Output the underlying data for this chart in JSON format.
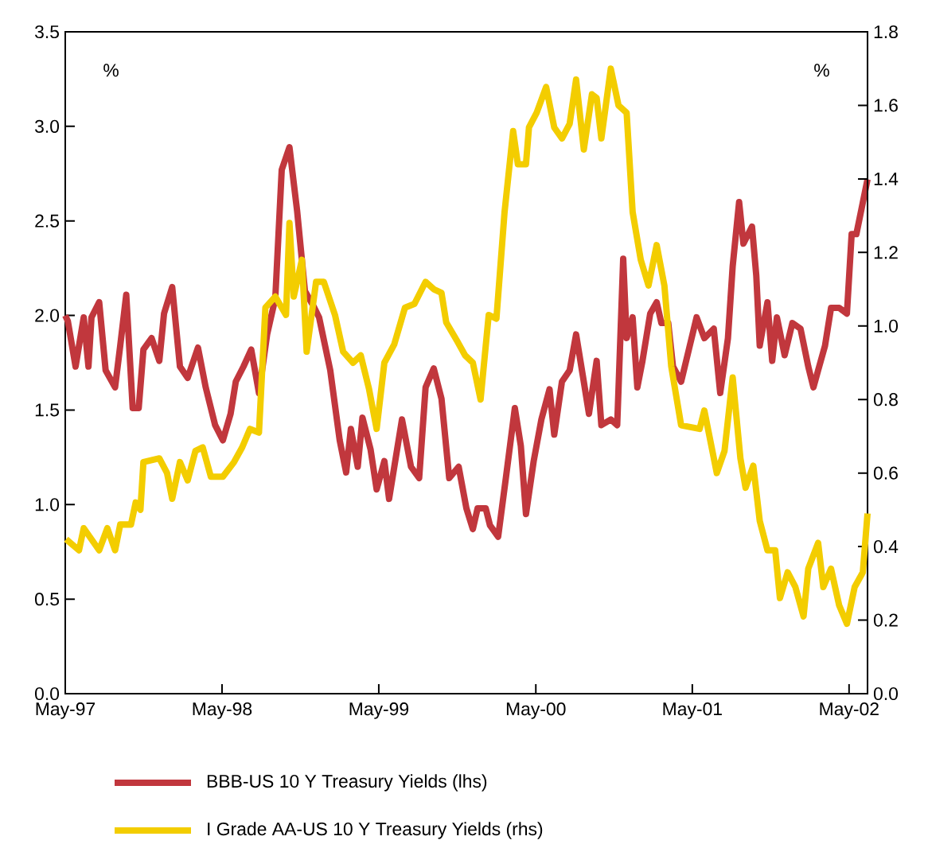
{
  "chart_data": {
    "type": "line",
    "xlim": [
      "1997-05-01",
      "2002-06-13"
    ],
    "xticks": [
      {
        "value": "1997-05",
        "label": "May-97"
      },
      {
        "value": "1998-05",
        "label": "May-98"
      },
      {
        "value": "1999-05",
        "label": "May-99"
      },
      {
        "value": "2000-05",
        "label": "May-00"
      },
      {
        "value": "2001-05",
        "label": "May-01"
      },
      {
        "value": "2002-05",
        "label": "May-02"
      }
    ],
    "ylim": [
      0,
      3.5
    ],
    "yticks": [
      {
        "value": 0,
        "label": "0.0"
      },
      {
        "value": 0.5,
        "label": "0.5"
      },
      {
        "value": 1,
        "label": "1.0"
      },
      {
        "value": 1.5,
        "label": "1.5"
      },
      {
        "value": 2,
        "label": "2.0"
      },
      {
        "value": 2.5,
        "label": "2.5"
      },
      {
        "value": 3,
        "label": "3.0"
      },
      {
        "value": 3.5,
        "label": "3.5"
      }
    ],
    "y2lim": [
      0,
      1.8
    ],
    "y2ticks": [
      {
        "value": 0,
        "label": "0.0"
      },
      {
        "value": 0.2,
        "label": "0.2"
      },
      {
        "value": 0.4,
        "label": "0.4"
      },
      {
        "value": 0.6,
        "label": "0.6"
      },
      {
        "value": 0.8,
        "label": "0.8"
      },
      {
        "value": 1,
        "label": "1.0"
      },
      {
        "value": 1.2,
        "label": "1.2"
      },
      {
        "value": 1.4,
        "label": "1.4"
      },
      {
        "value": 1.6,
        "label": "1.6"
      },
      {
        "value": 1.8,
        "label": "1.8"
      }
    ],
    "ylabel": "%",
    "y2label": "%",
    "legend": "bottom",
    "grid": false,
    "marker": "none",
    "line_style": "solid",
    "series": [
      {
        "name": "BBB-US 10 Y Treasury Yields (lhs)",
        "color": "#c1373d",
        "x": [
          "1997-05-01",
          "1997-05-07",
          "1997-05-25",
          "1997-06-13",
          "1997-06-24",
          "1997-07-01",
          "1997-07-19",
          "1997-08-03",
          "1997-08-25",
          "1997-09-06",
          "1997-09-20",
          "1997-10-05",
          "1997-10-19",
          "1997-10-30",
          "1997-11-18",
          "1997-12-06",
          "1997-12-17",
          "1998-01-05",
          "1998-01-23",
          "1998-02-10",
          "1998-03-06",
          "1998-03-24",
          "1998-04-15",
          "1998-05-03",
          "1998-05-21",
          "1998-06-02",
          "1998-06-20",
          "1998-07-08",
          "1998-07-26",
          "1998-08-14",
          "1998-09-02",
          "1998-09-17",
          "1998-10-05",
          "1998-10-23",
          "1998-11-10",
          "1998-12-02",
          "1998-12-13",
          "1999-01-08",
          "1999-01-30",
          "1999-02-14",
          "1999-02-25",
          "1999-03-13",
          "1999-03-24",
          "1999-04-12",
          "1999-04-26",
          "1999-05-14",
          "1999-05-25",
          "1999-06-24",
          "1999-07-15",
          "1999-08-03",
          "1999-08-18",
          "1999-09-06",
          "1999-09-24",
          "1999-10-12",
          "1999-11-03",
          "1999-11-21",
          "1999-12-06",
          "1999-12-17",
          "2000-01-05",
          "2000-01-15",
          "2000-02-03",
          "2000-02-21",
          "2000-03-13",
          "2000-03-27",
          "2000-04-08",
          "2000-04-26",
          "2000-05-14",
          "2000-06-02",
          "2000-06-13",
          "2000-07-01",
          "2000-07-19",
          "2000-08-03",
          "2000-08-21",
          "2000-09-02",
          "2000-09-20",
          "2000-10-01",
          "2000-10-23",
          "2000-11-07",
          "2000-11-21",
          "2000-11-29",
          "2000-12-13",
          "2000-12-24",
          "2001-01-05",
          "2001-01-23",
          "2001-02-07",
          "2001-02-18",
          "2001-03-06",
          "2001-03-17",
          "2001-04-05",
          "2001-04-23",
          "2001-05-11",
          "2001-05-29",
          "2001-06-20",
          "2001-07-05",
          "2001-07-23",
          "2001-08-03",
          "2001-08-18",
          "2001-08-28",
          "2001-09-17",
          "2001-09-27",
          "2001-10-05",
          "2001-10-23",
          "2001-11-03",
          "2001-11-14",
          "2001-12-02",
          "2001-12-20",
          "2002-01-08",
          "2002-01-26",
          "2002-02-07",
          "2002-02-18",
          "2002-03-06",
          "2002-03-20",
          "2002-04-08",
          "2002-04-26",
          "2002-05-07",
          "2002-05-18",
          "2002-06-13"
        ],
        "values": [
          2.0,
          1.97,
          1.73,
          1.99,
          1.73,
          1.99,
          2.07,
          1.71,
          1.62,
          1.84,
          2.11,
          1.51,
          1.51,
          1.82,
          1.88,
          1.76,
          2.01,
          2.15,
          1.73,
          1.67,
          1.83,
          1.62,
          1.42,
          1.34,
          1.48,
          1.65,
          1.73,
          1.82,
          1.59,
          1.9,
          2.09,
          2.77,
          2.89,
          2.55,
          2.13,
          2.04,
          1.99,
          1.71,
          1.34,
          1.17,
          1.4,
          1.2,
          1.46,
          1.29,
          1.08,
          1.23,
          1.03,
          1.45,
          1.2,
          1.14,
          1.62,
          1.72,
          1.56,
          1.14,
          1.2,
          0.98,
          0.87,
          0.98,
          0.98,
          0.89,
          0.83,
          1.14,
          1.51,
          1.31,
          0.95,
          1.23,
          1.45,
          1.61,
          1.37,
          1.65,
          1.71,
          1.9,
          1.65,
          1.48,
          1.76,
          1.42,
          1.45,
          1.42,
          2.3,
          1.88,
          1.99,
          1.62,
          1.76,
          2.01,
          2.07,
          1.96,
          1.96,
          1.73,
          1.65,
          1.82,
          1.99,
          1.88,
          1.93,
          1.59,
          1.88,
          2.26,
          2.6,
          2.38,
          2.47,
          2.21,
          1.84,
          2.07,
          1.76,
          1.99,
          1.79,
          1.96,
          1.93,
          1.73,
          1.62,
          1.71,
          1.84,
          2.04,
          2.04,
          2.01,
          2.43,
          2.43,
          2.72
        ]
      },
      {
        "name": "I Grade AA-US 10 Y Treasury Yields (rhs)",
        "color": "#f3cd00",
        "axis": "y2",
        "x": [
          "1997-05-03",
          "1997-06-02",
          "1997-06-13",
          "1997-07-19",
          "1997-08-07",
          "1997-08-25",
          "1997-09-06",
          "1997-10-01",
          "1997-10-12",
          "1997-10-23",
          "1997-10-30",
          "1997-12-06",
          "1997-12-24",
          "1998-01-05",
          "1998-01-23",
          "1998-02-10",
          "1998-02-28",
          "1998-03-17",
          "1998-04-05",
          "1998-05-03",
          "1998-05-29",
          "1998-06-17",
          "1998-07-05",
          "1998-07-26",
          "1998-08-10",
          "1998-09-02",
          "1998-09-27",
          "1998-10-05",
          "1998-10-15",
          "1998-11-03",
          "1998-11-14",
          "1998-12-06",
          "1998-12-24",
          "1999-01-19",
          "1999-02-07",
          "1999-03-02",
          "1999-03-20",
          "1999-04-08",
          "1999-04-26",
          "1999-05-14",
          "1999-06-06",
          "1999-07-01",
          "1999-07-23",
          "1999-08-18",
          "1999-09-06",
          "1999-09-24",
          "1999-10-05",
          "1999-10-30",
          "1999-11-18",
          "1999-12-06",
          "1999-12-24",
          "2000-01-12",
          "2000-01-30",
          "2000-02-18",
          "2000-03-09",
          "2000-03-20",
          "2000-04-08",
          "2000-04-15",
          "2000-05-03",
          "2000-05-25",
          "2000-06-13",
          "2000-07-01",
          "2000-07-19",
          "2000-08-03",
          "2000-08-21",
          "2000-09-09",
          "2000-09-20",
          "2000-10-01",
          "2000-10-23",
          "2000-11-10",
          "2000-11-29",
          "2000-12-13",
          "2001-01-01",
          "2001-01-19",
          "2001-02-07",
          "2001-02-25",
          "2001-03-13",
          "2001-04-05",
          "2001-05-18",
          "2001-05-29",
          "2001-06-27",
          "2001-07-15",
          "2001-08-03",
          "2001-08-21",
          "2001-09-02",
          "2001-09-20",
          "2001-10-05",
          "2001-10-23",
          "2001-11-10",
          "2001-11-21",
          "2001-12-09",
          "2001-12-27",
          "2002-01-15",
          "2002-01-26",
          "2002-02-18",
          "2002-03-02",
          "2002-03-20",
          "2002-04-08",
          "2002-04-26",
          "2002-05-14",
          "2002-06-02",
          "2002-06-13"
        ],
        "values": [
          0.42,
          0.39,
          0.45,
          0.39,
          0.45,
          0.39,
          0.46,
          0.46,
          0.52,
          0.5,
          0.63,
          0.64,
          0.6,
          0.53,
          0.63,
          0.58,
          0.66,
          0.67,
          0.59,
          0.59,
          0.63,
          0.67,
          0.72,
          0.71,
          1.05,
          1.08,
          1.03,
          1.28,
          1.08,
          1.18,
          0.93,
          1.12,
          1.12,
          1.03,
          0.93,
          0.9,
          0.92,
          0.83,
          0.72,
          0.9,
          0.95,
          1.05,
          1.06,
          1.12,
          1.1,
          1.09,
          1.01,
          0.96,
          0.92,
          0.9,
          0.8,
          1.03,
          1.02,
          1.31,
          1.53,
          1.44,
          1.44,
          1.54,
          1.58,
          1.65,
          1.54,
          1.51,
          1.55,
          1.67,
          1.48,
          1.63,
          1.62,
          1.51,
          1.7,
          1.6,
          1.58,
          1.31,
          1.18,
          1.11,
          1.22,
          1.11,
          0.89,
          0.73,
          0.72,
          0.77,
          0.6,
          0.66,
          0.86,
          0.64,
          0.56,
          0.62,
          0.47,
          0.39,
          0.39,
          0.26,
          0.33,
          0.29,
          0.21,
          0.34,
          0.41,
          0.29,
          0.34,
          0.24,
          0.19,
          0.29,
          0.33,
          0.49
        ]
      }
    ]
  }
}
